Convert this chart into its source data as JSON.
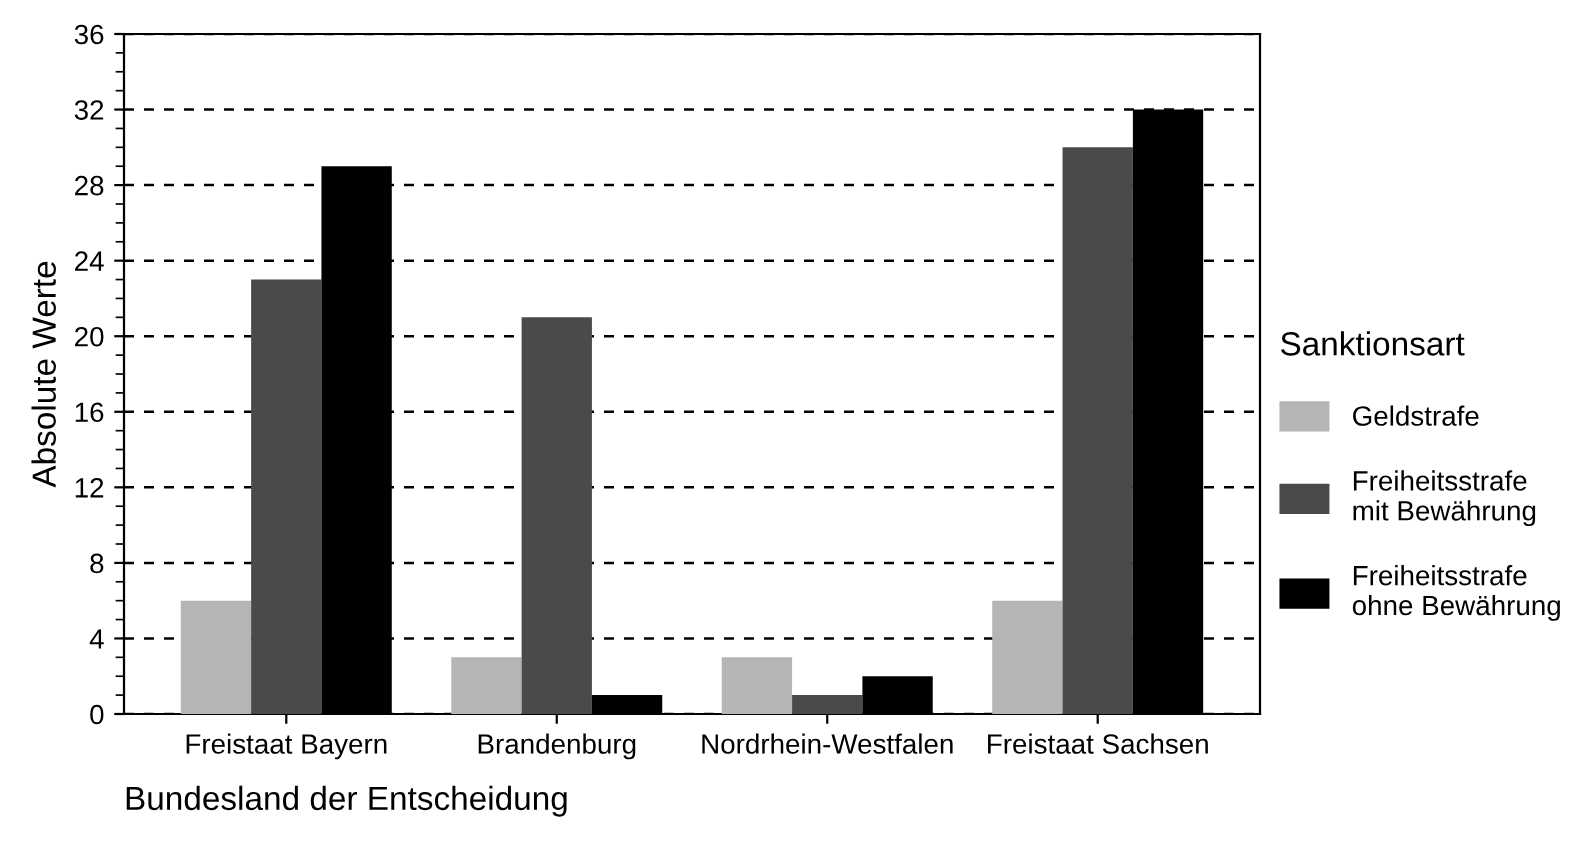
{
  "chart_data": {
    "type": "bar",
    "xlabel": "Bundesland der Entscheidung",
    "ylabel": "Absolute Werte",
    "legend_title": "Sanktionsart",
    "categories": [
      "Freistaat Bayern",
      "Brandenburg",
      "Nordrhein-Westfalen",
      "Freistaat Sachsen"
    ],
    "series": [
      {
        "name": "Geldstrafe",
        "color": "#b5b5b5",
        "values": [
          6,
          3,
          3,
          6
        ]
      },
      {
        "name": "Freiheitsstrafe\nmit Bewährung",
        "color": "#4a4a4a",
        "values": [
          23,
          21,
          1,
          30
        ]
      },
      {
        "name": "Freiheitsstrafe\nohne Bewährung",
        "color": "#000000",
        "values": [
          29,
          1,
          2,
          32
        ]
      }
    ],
    "ylim": [
      0,
      36
    ],
    "yticks": [
      0,
      4,
      8,
      12,
      16,
      20,
      24,
      28,
      32,
      36
    ],
    "grid": "y",
    "legend": "right"
  }
}
